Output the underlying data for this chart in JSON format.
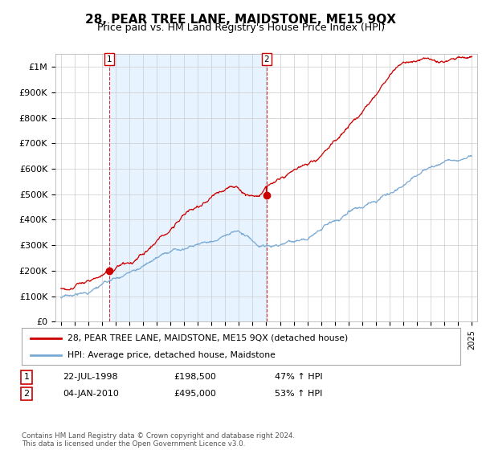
{
  "title": "28, PEAR TREE LANE, MAIDSTONE, ME15 9QX",
  "subtitle": "Price paid vs. HM Land Registry's House Price Index (HPI)",
  "ylim": [
    0,
    1050000
  ],
  "yticks": [
    0,
    100000,
    200000,
    300000,
    400000,
    500000,
    600000,
    700000,
    800000,
    900000,
    1000000
  ],
  "ytick_labels": [
    "£0",
    "£100K",
    "£200K",
    "£300K",
    "£400K",
    "£500K",
    "£600K",
    "£700K",
    "£800K",
    "£900K",
    "£1M"
  ],
  "purchase1_year": 1998.55,
  "purchase1_price": 198500,
  "purchase2_year": 2010.03,
  "purchase2_price": 495000,
  "legend_line1": "28, PEAR TREE LANE, MAIDSTONE, ME15 9QX (detached house)",
  "legend_line2": "HPI: Average price, detached house, Maidstone",
  "table_row1": [
    "1",
    "22-JUL-1998",
    "£198,500",
    "47% ↑ HPI"
  ],
  "table_row2": [
    "2",
    "04-JAN-2010",
    "£495,000",
    "53% ↑ HPI"
  ],
  "footnote": "Contains HM Land Registry data © Crown copyright and database right 2024.\nThis data is licensed under the Open Government Licence v3.0.",
  "red_color": "#cc0000",
  "blue_color": "#7aaad4",
  "shade_color": "#ddeeff",
  "background_color": "#ffffff",
  "grid_color": "#cccccc",
  "title_fontsize": 11,
  "subtitle_fontsize": 9,
  "axis_fontsize": 8
}
